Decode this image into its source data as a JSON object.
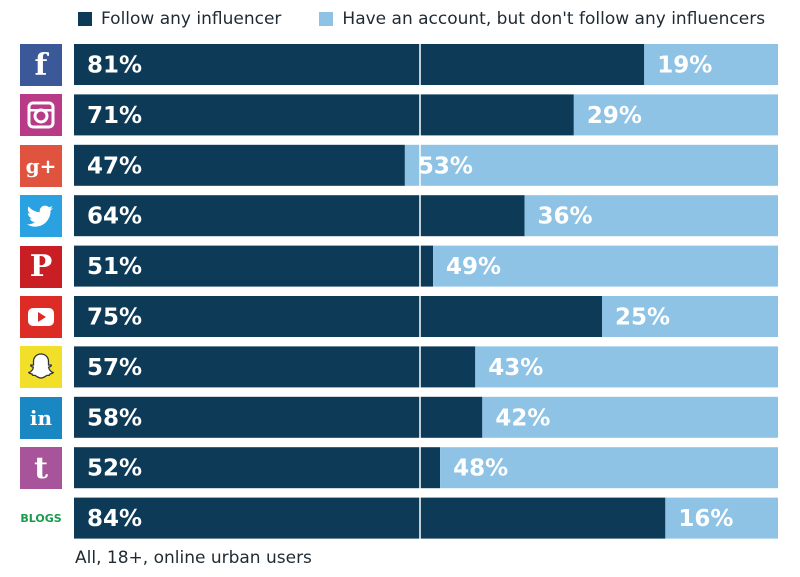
{
  "legend": {
    "series1_label": "Follow any influencer",
    "series2_label": "Have an account, but don't follow any influencers"
  },
  "colors": {
    "follow": "#0c3a57",
    "no_follow": "#8ec3e6",
    "facebook": "#3b5998",
    "instagram": "#b93a86",
    "googleplus": "#e0533f",
    "twitter": "#2aa1e0",
    "pinterest": "#c81e24",
    "youtube": "#dd2b26",
    "snapchat": "#f2df2a",
    "linkedin": "#1887c2",
    "tumblr": "#a8549a",
    "blogs": "#1a9a4a"
  },
  "footnote": "All, 18+, online urban users",
  "platforms": [
    {
      "icon": "facebook-icon",
      "glyph": "f",
      "color_key": "facebook"
    },
    {
      "icon": "instagram-icon",
      "glyph": "",
      "color_key": "instagram"
    },
    {
      "icon": "google-plus-icon",
      "glyph": "g+",
      "color_key": "googleplus"
    },
    {
      "icon": "twitter-icon",
      "glyph": "",
      "color_key": "twitter"
    },
    {
      "icon": "pinterest-icon",
      "glyph": "P",
      "color_key": "pinterest"
    },
    {
      "icon": "youtube-icon",
      "glyph": "",
      "color_key": "youtube"
    },
    {
      "icon": "snapchat-icon",
      "glyph": "",
      "color_key": "snapchat"
    },
    {
      "icon": "linkedin-icon",
      "glyph": "in",
      "color_key": "linkedin"
    },
    {
      "icon": "tumblr-icon",
      "glyph": "t",
      "color_key": "tumblr"
    },
    {
      "icon": "blogs-icon",
      "glyph": "BLOGS",
      "color_key": "blogs"
    }
  ],
  "chart_data": {
    "type": "bar",
    "orientation": "horizontal",
    "stacked": true,
    "xlim": [
      0,
      100
    ],
    "value_suffix": "%",
    "series": [
      {
        "name": "Follow any influencer",
        "values": [
          81,
          71,
          47,
          64,
          51,
          75,
          57,
          58,
          52,
          84
        ]
      },
      {
        "name": "Have an account, but don't follow any influencers",
        "values": [
          19,
          29,
          53,
          36,
          49,
          25,
          43,
          42,
          48,
          16
        ]
      }
    ],
    "data_labels_1": [
      "81%",
      "71%",
      "47%",
      "64%",
      "51%",
      "75%",
      "57%",
      "58%",
      "52%",
      "84%"
    ],
    "data_labels_2": [
      "19%",
      "29%",
      "53%",
      "36%",
      "49%",
      "25%",
      "43%",
      "42%",
      "48%",
      "16%"
    ]
  }
}
